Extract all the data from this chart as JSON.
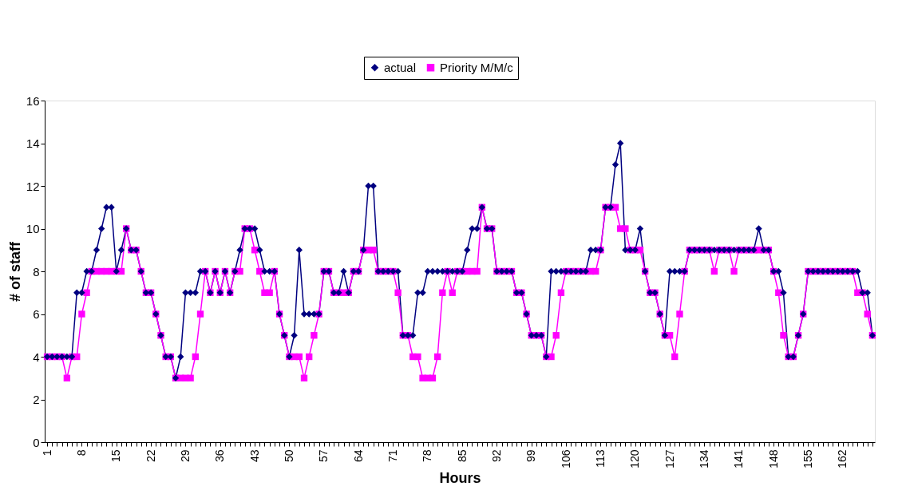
{
  "chart_data": {
    "type": "line",
    "xlabel": "Hours",
    "ylabel": "# of staff",
    "categories": [
      "1",
      null,
      null,
      null,
      null,
      null,
      null,
      "8",
      null,
      null,
      null,
      null,
      null,
      null,
      "15",
      null,
      null,
      null,
      null,
      null,
      null,
      "22",
      null,
      null,
      null,
      null,
      null,
      null,
      "29",
      null,
      null,
      null,
      null,
      null,
      null,
      "36",
      null,
      null,
      null,
      null,
      null,
      null,
      "43",
      null,
      null,
      null,
      null,
      null,
      null,
      "50",
      null,
      null,
      null,
      null,
      null,
      null,
      "57",
      null,
      null,
      null,
      null,
      null,
      null,
      "64",
      null,
      null,
      null,
      null,
      null,
      null,
      "71",
      null,
      null,
      null,
      null,
      null,
      null,
      "78",
      null,
      null,
      null,
      null,
      null,
      null,
      "85",
      null,
      null,
      null,
      null,
      null,
      null,
      "92",
      null,
      null,
      null,
      null,
      null,
      null,
      "99",
      null,
      null,
      null,
      null,
      null,
      null,
      "106",
      null,
      null,
      null,
      null,
      null,
      null,
      "113",
      null,
      null,
      null,
      null,
      null,
      null,
      "120",
      null,
      null,
      null,
      null,
      null,
      null,
      "127",
      null,
      null,
      null,
      null,
      null,
      null,
      "134",
      null,
      null,
      null,
      null,
      null,
      null,
      "141",
      null,
      null,
      null,
      null,
      null,
      null,
      "148",
      null,
      null,
      null,
      null,
      null,
      null,
      "155",
      null,
      null,
      null,
      null,
      null,
      null,
      "162",
      null,
      null,
      null,
      null,
      null,
      null
    ],
    "series": [
      {
        "name": "actual",
        "color": "#000080",
        "marker": "diamond",
        "values": [
          4,
          4,
          4,
          4,
          4,
          4,
          7,
          7,
          8,
          8,
          9,
          10,
          11,
          11,
          8,
          9,
          10,
          9,
          9,
          8,
          7,
          7,
          6,
          5,
          4,
          4,
          3,
          4,
          7,
          7,
          7,
          8,
          8,
          7,
          8,
          7,
          8,
          7,
          8,
          9,
          10,
          10,
          10,
          9,
          8,
          8,
          8,
          6,
          5,
          4,
          5,
          9,
          6,
          6,
          6,
          6,
          8,
          8,
          7,
          7,
          8,
          7,
          8,
          8,
          9,
          12,
          12,
          8,
          8,
          8,
          8,
          8,
          5,
          5,
          5,
          7,
          7,
          8,
          8,
          8,
          8,
          8,
          8,
          8,
          8,
          9,
          10,
          10,
          11,
          10,
          10,
          8,
          8,
          8,
          8,
          7,
          7,
          6,
          5,
          5,
          5,
          4,
          8,
          8,
          8,
          8,
          8,
          8,
          8,
          8,
          9,
          9,
          9,
          11,
          11,
          13,
          14,
          9,
          9,
          9,
          10,
          8,
          7,
          7,
          6,
          5,
          8,
          8,
          8,
          8,
          9,
          9,
          9,
          9,
          9,
          9,
          9,
          9,
          9,
          9,
          9,
          9,
          9,
          9,
          10,
          9,
          9,
          8,
          8,
          7,
          4,
          4,
          5,
          6,
          8,
          8,
          8,
          8,
          8,
          8,
          8,
          8,
          8,
          8,
          8,
          7,
          7,
          5
        ]
      },
      {
        "name": "Priority M/M/c",
        "color": "#ff00ff",
        "marker": "square",
        "values": [
          4,
          4,
          4,
          4,
          3,
          4,
          4,
          6,
          7,
          8,
          8,
          8,
          8,
          8,
          8,
          8,
          10,
          9,
          9,
          8,
          7,
          7,
          6,
          5,
          4,
          4,
          3,
          3,
          3,
          3,
          4,
          6,
          8,
          7,
          8,
          7,
          8,
          7,
          8,
          8,
          10,
          10,
          9,
          8,
          7,
          7,
          8,
          6,
          5,
          4,
          4,
          4,
          3,
          4,
          5,
          6,
          8,
          8,
          7,
          7,
          7,
          7,
          8,
          8,
          9,
          9,
          9,
          8,
          8,
          8,
          8,
          7,
          5,
          5,
          4,
          4,
          3,
          3,
          3,
          4,
          7,
          8,
          7,
          8,
          8,
          8,
          8,
          8,
          11,
          10,
          10,
          8,
          8,
          8,
          8,
          7,
          7,
          6,
          5,
          5,
          5,
          4,
          4,
          5,
          7,
          8,
          8,
          8,
          8,
          8,
          8,
          8,
          9,
          11,
          11,
          11,
          10,
          10,
          9,
          9,
          9,
          8,
          7,
          7,
          6,
          5,
          5,
          4,
          6,
          8,
          9,
          9,
          9,
          9,
          9,
          8,
          9,
          9,
          9,
          8,
          9,
          9,
          9,
          9,
          9,
          9,
          9,
          8,
          7,
          5,
          4,
          4,
          5,
          6,
          8,
          8,
          8,
          8,
          8,
          8,
          8,
          8,
          8,
          8,
          7,
          7,
          6,
          5
        ]
      }
    ],
    "ylim": [
      0,
      16
    ],
    "yticks": [
      0,
      2,
      4,
      6,
      8,
      10,
      12,
      14,
      16
    ],
    "grid": false,
    "legend": "top",
    "line_style": "solid"
  }
}
